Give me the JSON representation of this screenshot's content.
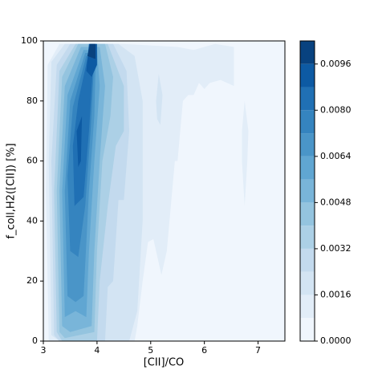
{
  "chart_data": {
    "type": "contour",
    "xlabel": "[CII]/CO",
    "ylabel": "f_coll,H2([CII]) [%]",
    "xlim": [
      3,
      7.5
    ],
    "ylim": [
      0,
      100
    ],
    "xticks": [
      3,
      4,
      5,
      6,
      7
    ],
    "yticks": [
      0,
      20,
      40,
      60,
      80,
      100
    ],
    "colorbar": {
      "levels": [
        0,
        0.0008,
        0.0016,
        0.0024,
        0.0032,
        0.004,
        0.0048,
        0.0056,
        0.0064,
        0.0072,
        0.008,
        0.0088,
        0.0096,
        0.0104
      ],
      "colors": [
        "#f0f6fd",
        "#e2edf8",
        "#d3e4f3",
        "#c3daee",
        "#acd0e6",
        "#94c4df",
        "#79b5d9",
        "#60a6d2",
        "#4a95c8",
        "#3584bf",
        "#2070b4",
        "#0d5aa3",
        "#08427f"
      ],
      "ylim": [
        0,
        0.0104
      ],
      "ticks": [
        {
          "value": 0,
          "label": "0.0000"
        },
        {
          "value": 0.0016,
          "label": "0.0016"
        },
        {
          "value": 0.0032,
          "label": "0.0032"
        },
        {
          "value": 0.0048,
          "label": "0.0048"
        },
        {
          "value": 0.0064,
          "label": "0.0064"
        },
        {
          "value": 0.008,
          "label": "0.0080"
        },
        {
          "value": 0.0096,
          "label": "0.0096"
        }
      ]
    },
    "regions": [
      {
        "level": 0,
        "x": [
          3,
          7.5,
          7.5,
          3
        ],
        "y": [
          0,
          0,
          100,
          100
        ]
      },
      {
        "level": 0.0008,
        "x": [
          3.1,
          3.05,
          3.08,
          3.3,
          4.5,
          5.5,
          5.8,
          6.2,
          6.55,
          6.55,
          6.3,
          6.1,
          6.0,
          5.9,
          5.8,
          5.7,
          5.6,
          5.5,
          5.45,
          5.35,
          5.3,
          5.2,
          5.05,
          4.95,
          4.85,
          4.75,
          4.7
        ],
        "y": [
          0,
          50,
          92,
          99,
          99,
          98,
          97,
          99,
          98,
          85,
          87,
          86,
          84,
          86,
          82,
          82,
          80,
          60,
          60,
          40,
          30,
          22,
          34,
          33,
          20,
          5,
          0
        ]
      },
      {
        "level": 0.0008,
        "x": [
          6.7,
          6.75,
          6.82,
          6.8,
          6.75,
          6.7
        ],
        "y": [
          70,
          80,
          70,
          60,
          45,
          60
        ]
      },
      {
        "level": 0.0016,
        "x": [
          3.15,
          3.1,
          3.15,
          3.4,
          4.4,
          4.7,
          4.85,
          4.85,
          4.75,
          4.6,
          3.3
        ],
        "y": [
          2,
          60,
          93,
          99,
          99,
          95,
          80,
          40,
          10,
          0,
          0
        ]
      },
      {
        "level": 0.0016,
        "x": [
          5.1,
          5.15,
          5.22,
          5.18,
          5.12
        ],
        "y": [
          80,
          89,
          82,
          72,
          74
        ]
      },
      {
        "level": 0.0024,
        "x": [
          3.2,
          3.15,
          3.25,
          3.5,
          4.3,
          4.55,
          4.6,
          4.5,
          4.4,
          4.3,
          4.2,
          4.15,
          3.3
        ],
        "y": [
          2,
          60,
          92,
          99,
          99,
          90,
          70,
          47,
          47,
          20,
          18,
          0,
          0
        ]
      },
      {
        "level": 0.0032,
        "x": [
          3.25,
          3.2,
          3.3,
          3.6,
          4.2,
          4.5,
          4.5,
          4.35,
          4.2,
          4.05,
          4.0,
          3.35
        ],
        "y": [
          3,
          50,
          90,
          99,
          99,
          85,
          70,
          65,
          45,
          20,
          0,
          0
        ]
      },
      {
        "level": 0.004,
        "x": [
          3.3,
          3.25,
          3.35,
          3.65,
          4.15,
          4.3,
          4.25,
          4.1,
          4.0,
          3.95,
          3.4
        ],
        "y": [
          3,
          50,
          88,
          99,
          99,
          88,
          75,
          60,
          30,
          3,
          1
        ]
      },
      {
        "level": 0.0048,
        "x": [
          3.35,
          3.3,
          3.4,
          3.7,
          4.05,
          4.15,
          4.05,
          3.95,
          3.9,
          3.5
        ],
        "y": [
          5,
          50,
          85,
          98,
          98,
          85,
          60,
          30,
          5,
          3
        ]
      },
      {
        "level": 0.0056,
        "x": [
          3.4,
          3.35,
          3.45,
          3.75,
          4.0,
          4.05,
          3.95,
          3.85,
          3.8,
          3.6
        ],
        "y": [
          8,
          50,
          82,
          97,
          97,
          85,
          60,
          30,
          8,
          10
        ]
      },
      {
        "level": 0.0064,
        "x": [
          3.45,
          3.4,
          3.5,
          3.78,
          3.98,
          3.95,
          3.85,
          3.75,
          3.6
        ],
        "y": [
          15,
          50,
          80,
          96,
          96,
          75,
          50,
          15,
          13
        ]
      },
      {
        "level": 0.0072,
        "x": [
          3.5,
          3.45,
          3.55,
          3.8,
          3.95,
          3.88,
          3.78,
          3.65
        ],
        "y": [
          30,
          55,
          78,
          95,
          94,
          70,
          45,
          28
        ]
      },
      {
        "level": 0.008,
        "x": [
          3.58,
          3.55,
          3.65,
          3.82,
          3.93,
          3.85,
          3.75
        ],
        "y": [
          45,
          65,
          80,
          94,
          93,
          70,
          48
        ]
      },
      {
        "level": 0.0088,
        "x": [
          3.65,
          3.62,
          3.72,
          3.7
        ],
        "y": [
          58,
          70,
          75,
          60
        ]
      },
      {
        "level": 0.0088,
        "x": [
          3.8,
          3.85,
          4.0,
          4.0,
          3.9
        ],
        "y": [
          90,
          99,
          99,
          92,
          88
        ]
      },
      {
        "level": 0.0096,
        "x": [
          3.82,
          3.87,
          3.97,
          3.97
        ],
        "y": [
          95,
          99,
          99,
          94
        ]
      }
    ]
  }
}
